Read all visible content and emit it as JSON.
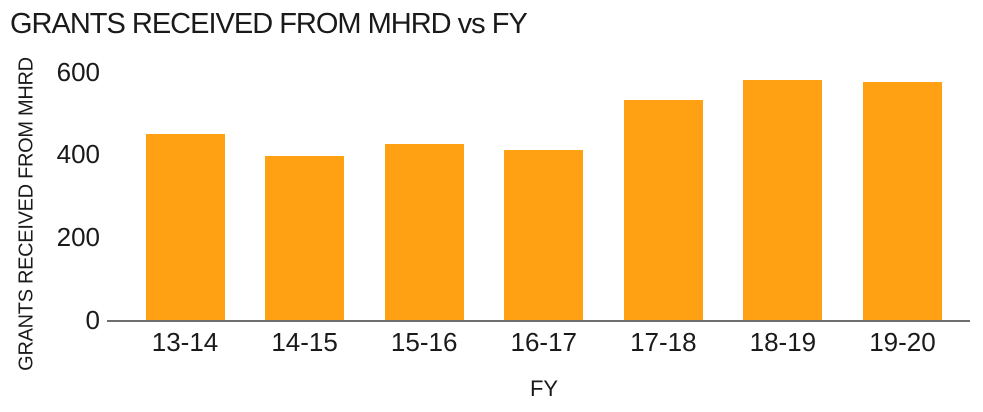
{
  "chart_data": {
    "type": "bar",
    "title": "GRANTS RECEIVED FROM MHRD vs FY",
    "xlabel": "FY",
    "ylabel": "GRANTS RECEIVED FROM MHRD",
    "categories": [
      "13-14",
      "14-15",
      "15-16",
      "16-17",
      "17-18",
      "18-19",
      "19-20"
    ],
    "values": [
      450,
      395,
      425,
      410,
      530,
      580,
      575
    ],
    "ylim": [
      0,
      600
    ],
    "yticks": [
      0,
      200,
      400,
      600
    ],
    "grid": false,
    "legend": false,
    "bar_color": "#FFA113",
    "axis_color": "#6E6E6E",
    "text_color": "#1A1A1A"
  }
}
